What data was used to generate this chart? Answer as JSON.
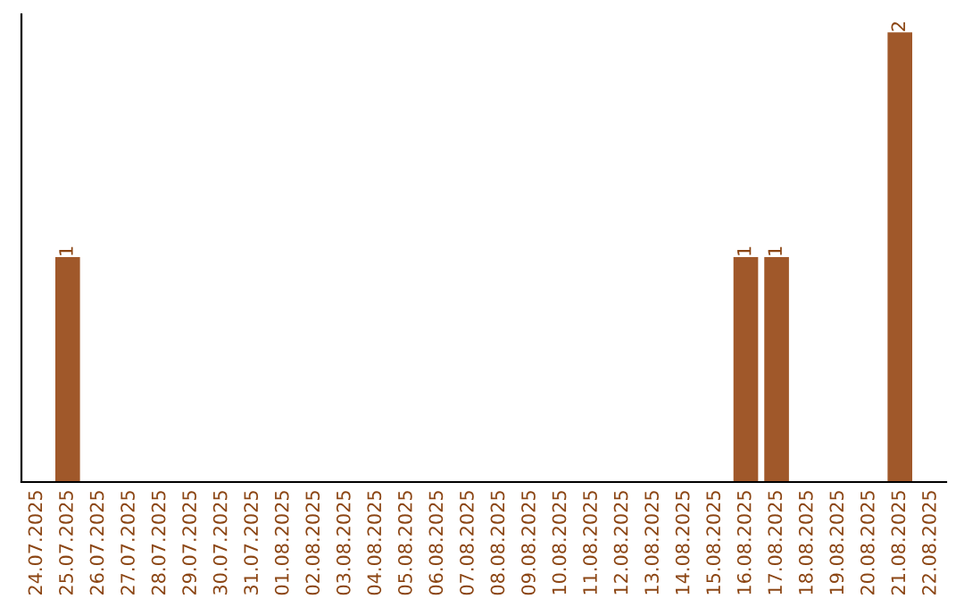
{
  "chart_data": {
    "type": "bar",
    "categories": [
      "24.07.2025",
      "25.07.2025",
      "26.07.2025",
      "27.07.2025",
      "28.07.2025",
      "29.07.2025",
      "30.07.2025",
      "31.07.2025",
      "01.08.2025",
      "02.08.2025",
      "03.08.2025",
      "04.08.2025",
      "05.08.2025",
      "06.08.2025",
      "07.08.2025",
      "08.08.2025",
      "09.08.2025",
      "10.08.2025",
      "11.08.2025",
      "12.08.2025",
      "13.08.2025",
      "14.08.2025",
      "15.08.2025",
      "16.08.2025",
      "17.08.2025",
      "18.08.2025",
      "19.08.2025",
      "20.08.2025",
      "21.08.2025",
      "22.08.2025"
    ],
    "values": [
      0,
      1,
      0,
      0,
      0,
      0,
      0,
      0,
      0,
      0,
      0,
      0,
      0,
      0,
      0,
      0,
      0,
      0,
      0,
      0,
      0,
      0,
      0,
      1,
      1,
      0,
      0,
      0,
      2,
      0
    ],
    "value_labels": [
      null,
      "1",
      null,
      null,
      null,
      null,
      null,
      null,
      null,
      null,
      null,
      null,
      null,
      null,
      null,
      null,
      null,
      null,
      null,
      null,
      null,
      null,
      null,
      "1",
      "1",
      null,
      null,
      null,
      "2",
      null
    ],
    "color": "#a0582a",
    "tick_labels": "x",
    "grid": false,
    "legend": false
  }
}
